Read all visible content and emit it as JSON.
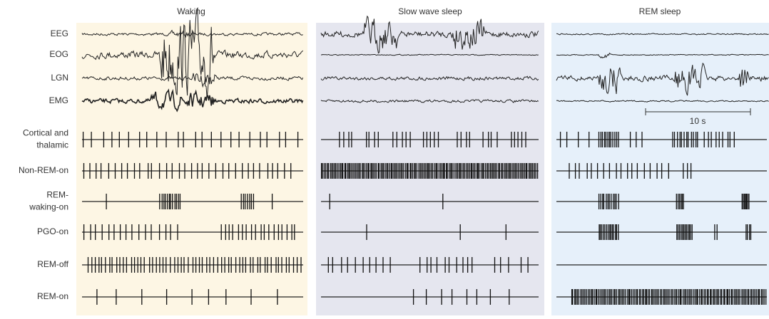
{
  "panels": [
    {
      "title": "Waking"
    },
    {
      "title": "Slow wave sleep"
    },
    {
      "title": "REM sleep"
    }
  ],
  "rows": [
    {
      "lines": [
        "EEG"
      ]
    },
    {
      "lines": [
        "EOG"
      ]
    },
    {
      "lines": [
        "LGN"
      ]
    },
    {
      "lines": [
        "EMG"
      ]
    },
    {
      "lines": [
        "Cortical and",
        "thalamic"
      ]
    },
    {
      "lines": [
        "Non-REM-on"
      ]
    },
    {
      "lines": [
        "REM-",
        "waking-on"
      ]
    },
    {
      "lines": [
        "PGO-on"
      ]
    },
    {
      "lines": [
        "REM-off"
      ]
    },
    {
      "lines": [
        "REM-on"
      ]
    }
  ],
  "scale_bar": {
    "label": "10 s"
  }
}
